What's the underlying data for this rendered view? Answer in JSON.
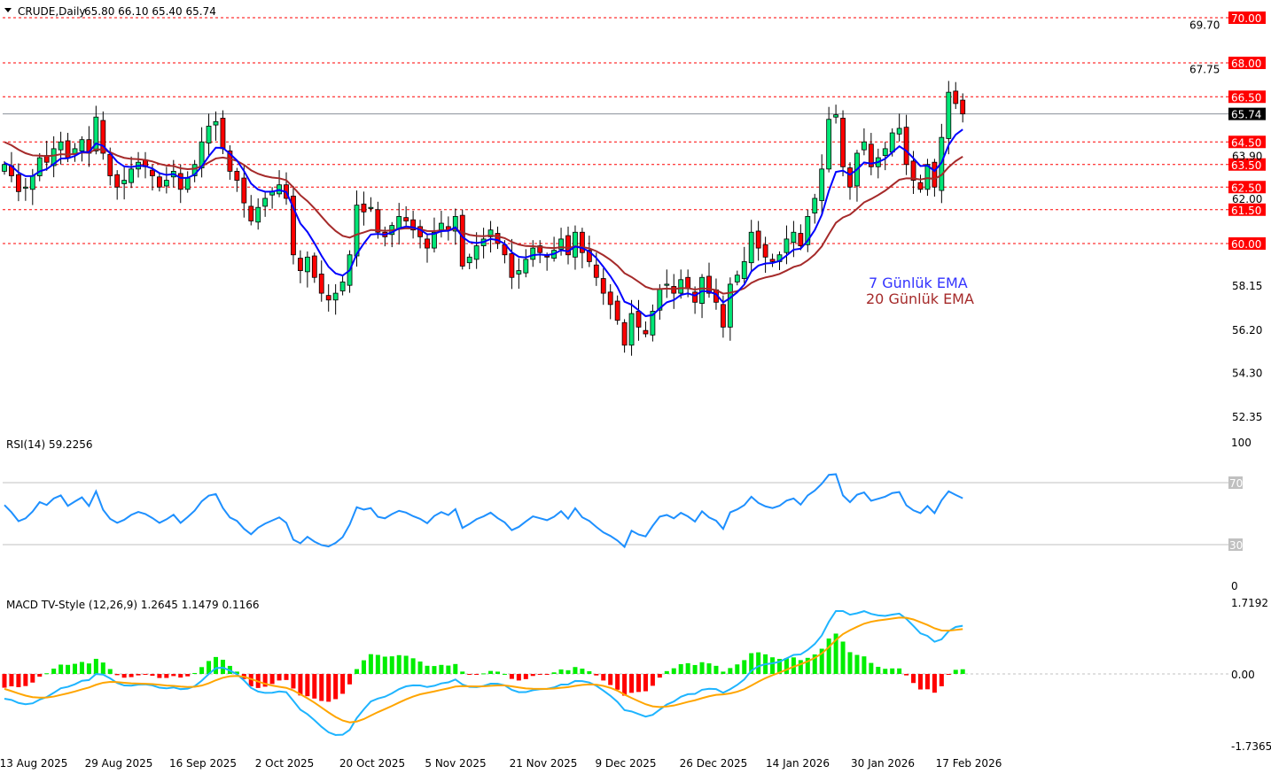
{
  "header": {
    "symbol": "CRUDE,Daily",
    "ohlc": "65.80 66.10 65.40 65.74"
  },
  "legend": {
    "ema7": "7 Günlük EMA",
    "ema20": "20 Günlük EMA",
    "ema7_color": "#3333ff",
    "ema20_color": "#a52a2a"
  },
  "levels": [
    {
      "value": 70.0,
      "label": "70.00"
    },
    {
      "value": 68.0,
      "label": "68.00"
    },
    {
      "value": 66.5,
      "label": "66.50"
    },
    {
      "value": 64.5,
      "label": "64.50"
    },
    {
      "value": 63.5,
      "label": "63.50"
    },
    {
      "value": 62.5,
      "label": "62.50"
    },
    {
      "value": 61.5,
      "label": "61.50"
    },
    {
      "value": 60.0,
      "label": "60.00"
    }
  ],
  "current_price": {
    "value": 65.74,
    "label": "65.74"
  },
  "price_axis": [
    {
      "value": 69.7,
      "label": "69.70"
    },
    {
      "value": 67.75,
      "label": "67.75"
    },
    {
      "value": 63.9,
      "label": "63.90"
    },
    {
      "value": 62.0,
      "label": "62.00"
    },
    {
      "value": 58.15,
      "label": "58.15"
    },
    {
      "value": 56.2,
      "label": "56.20"
    },
    {
      "value": 54.3,
      "label": "54.30"
    },
    {
      "value": 52.35,
      "label": "52.35"
    }
  ],
  "rsi": {
    "title": "RSI(14) 59.2256",
    "axis": {
      "top": "100",
      "upper": "70",
      "lower": "30",
      "bottom": "0"
    }
  },
  "macd": {
    "title": "MACD TV-Style (12,26,9) 1.2645 1.1479 0.1166",
    "axis": {
      "top": "1.7192",
      "zero": "0.00",
      "bottom": "-1.7365"
    }
  },
  "dates": [
    "13 Aug 2025",
    "29 Aug 2025",
    "16 Sep 2025",
    "2 Oct 2025",
    "20 Oct 2025",
    "5 Nov 2025",
    "21 Nov 2025",
    "9 Dec 2025",
    "26 Dec 2025",
    "14 Jan 2026",
    "30 Jan 2026",
    "17 Feb 2026"
  ],
  "colors": {
    "bull": "#00e676",
    "bear": "#ff0000",
    "level": "#ff0000",
    "rsi": "#1e90ff",
    "macd": "#1eb4ff",
    "signal": "#ffa500",
    "hist_pos": "#00ee00",
    "hist_neg": "#ff0000"
  },
  "chart_data": {
    "type": "candlestick",
    "title": "CRUDE, Daily",
    "x_range": [
      "13 Aug 2025",
      "20 Feb 2026"
    ],
    "ylim": [
      51.5,
      70.8
    ],
    "ema_seed": {
      "ema7": 63.6,
      "ema20": 64.6
    },
    "closes": [
      63.5,
      63.0,
      62.3,
      62.5,
      63.0,
      63.8,
      63.6,
      64.2,
      64.5,
      63.8,
      64.2,
      64.6,
      64.0,
      65.6,
      64.0,
      63.0,
      62.5,
      62.8,
      63.3,
      63.6,
      63.4,
      63.0,
      62.5,
      62.8,
      63.2,
      62.4,
      62.9,
      63.5,
      64.5,
      65.2,
      65.4,
      64.2,
      63.2,
      62.8,
      61.8,
      61.0,
      61.6,
      62.0,
      62.3,
      62.6,
      62.0,
      59.5,
      58.8,
      59.4,
      58.5,
      57.8,
      57.5,
      57.8,
      58.3,
      59.5,
      61.7,
      61.4,
      61.6,
      60.5,
      60.3,
      60.8,
      61.2,
      61.0,
      60.6,
      60.3,
      59.8,
      60.5,
      60.9,
      60.6,
      61.2,
      59.0,
      59.4,
      59.9,
      60.2,
      60.6,
      60.0,
      59.5,
      58.5,
      58.8,
      59.3,
      59.8,
      59.6,
      59.4,
      59.7,
      60.2,
      59.5,
      60.5,
      59.6,
      59.2,
      58.5,
      57.8,
      57.3,
      56.6,
      55.5,
      56.9,
      56.3,
      56.0,
      57.0,
      58.0,
      58.2,
      57.8,
      58.4,
      58.0,
      57.4,
      58.5,
      57.8,
      57.4,
      56.3,
      58.2,
      58.6,
      59.2,
      60.5,
      59.8,
      59.4,
      59.2,
      59.5,
      60.2,
      60.5,
      59.9,
      61.2,
      62.0,
      63.3,
      65.5,
      65.7,
      63.4,
      62.5,
      64.0,
      64.5,
      63.4,
      63.8,
      64.2,
      64.9,
      65.1,
      63.5,
      62.8,
      62.4,
      63.5,
      62.5,
      64.7,
      66.7,
      66.2,
      65.74
    ],
    "rsi": {
      "period": 14,
      "levels": [
        30,
        70
      ],
      "ylim": [
        0,
        100
      ],
      "last": 59.2256
    },
    "macd": {
      "fast": 12,
      "slow": 26,
      "signal": 9,
      "last": {
        "macd": 1.2645,
        "signal": 1.1479,
        "hist": 0.1166
      },
      "ylim": [
        -1.7365,
        1.7192
      ]
    }
  }
}
